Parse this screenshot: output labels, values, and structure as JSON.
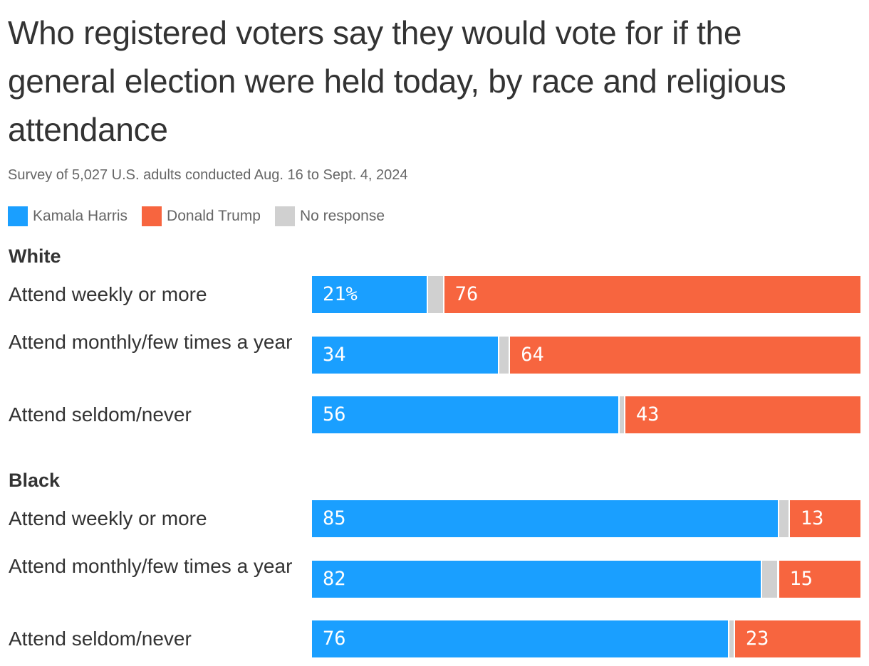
{
  "title": "Who registered voters say they would vote for if the general election were held today, by race and religious attendance",
  "subtitle": "Survey of 5,027 U.S. adults conducted Aug. 16 to Sept. 4, 2024",
  "colors": {
    "harris": "#1a9fff",
    "trump": "#f7653f",
    "none": "#d0d0d0"
  },
  "legend": [
    {
      "label": "Kamala Harris",
      "color": "#1a9fff"
    },
    {
      "label": "Donald Trump",
      "color": "#f7653f"
    },
    {
      "label": "No response",
      "color": "#d0d0d0"
    }
  ],
  "chart_data": {
    "type": "bar",
    "orientation": "horizontal-stacked",
    "unit": "%",
    "series": [
      {
        "name": "Kamala Harris"
      },
      {
        "name": "Donald Trump"
      },
      {
        "name": "No response"
      }
    ],
    "groups": [
      {
        "name": "White",
        "rows": [
          {
            "label": "Attend weekly or more",
            "harris": 21,
            "trump": 76,
            "harris_label": "21%",
            "trump_label": "76"
          },
          {
            "label": "Attend monthly/few times a year",
            "harris": 34,
            "trump": 64,
            "harris_label": "34",
            "trump_label": "64"
          },
          {
            "label": "Attend seldom/never",
            "harris": 56,
            "trump": 43,
            "harris_label": "56",
            "trump_label": "43"
          }
        ]
      },
      {
        "name": "Black",
        "rows": [
          {
            "label": "Attend weekly or more",
            "harris": 85,
            "trump": 13,
            "harris_label": "85",
            "trump_label": "13"
          },
          {
            "label": "Attend monthly/few times a year",
            "harris": 82,
            "trump": 15,
            "harris_label": "82",
            "trump_label": "15"
          },
          {
            "label": "Attend seldom/never",
            "harris": 76,
            "trump": 23,
            "harris_label": "76",
            "trump_label": "23"
          }
        ]
      }
    ]
  }
}
